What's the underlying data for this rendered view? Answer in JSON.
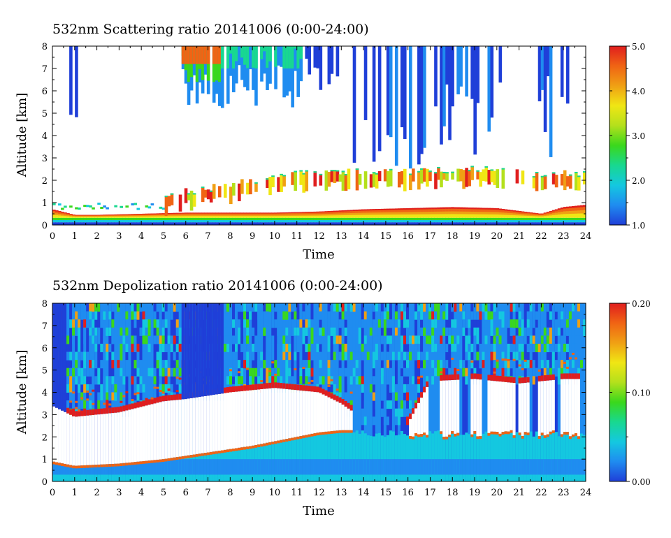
{
  "chart_data": [
    {
      "type": "heatmap",
      "title": "532nm Scattering ratio  20141006 (0:00-24:00)",
      "xlabel": "Time",
      "ylabel": "Altitude [km]",
      "xlim": [
        0,
        24
      ],
      "ylim": [
        0,
        8
      ],
      "x_ticks": [
        "0",
        "1",
        "2",
        "3",
        "4",
        "5",
        "6",
        "7",
        "8",
        "9",
        "10",
        "11",
        "12",
        "13",
        "14",
        "15",
        "16",
        "17",
        "18",
        "19",
        "20",
        "21",
        "22",
        "23",
        "24"
      ],
      "y_ticks": [
        "0",
        "1",
        "2",
        "3",
        "4",
        "5",
        "6",
        "7",
        "8"
      ],
      "colorbar": {
        "min": 1.0,
        "max": 5.0,
        "ticks": [
          "1.0",
          "2.0",
          "3.0",
          "4.0",
          "5.0"
        ]
      },
      "colormap": [
        "#1f3fd8",
        "#1f8cf0",
        "#14c8e0",
        "#18d890",
        "#3ad81c",
        "#b4e01c",
        "#f0e614",
        "#f0a014",
        "#f06414",
        "#e01e1e"
      ],
      "features": {
        "boundary_layer_top_km": [
          [
            0,
            0.7
          ],
          [
            1,
            0.45
          ],
          [
            2,
            0.45
          ],
          [
            4,
            0.5
          ],
          [
            6,
            0.55
          ],
          [
            8,
            0.55
          ],
          [
            10,
            0.55
          ],
          [
            12,
            0.6
          ],
          [
            14,
            0.7
          ],
          [
            16,
            0.75
          ],
          [
            18,
            0.8
          ],
          [
            20,
            0.75
          ],
          [
            22,
            0.5
          ],
          [
            23,
            0.8
          ],
          [
            24,
            0.9
          ]
        ],
        "aerosol_layer_top_km": [
          [
            0,
            0.9
          ],
          [
            4,
            0.9
          ],
          [
            6,
            1.5
          ],
          [
            8,
            1.8
          ],
          [
            10,
            2.2
          ],
          [
            12,
            2.4
          ],
          [
            14,
            2.4
          ],
          [
            16,
            2.4
          ],
          [
            18,
            2.5
          ],
          [
            20,
            2.5
          ],
          [
            22,
            2.3
          ],
          [
            24,
            2.3
          ]
        ]
      }
    },
    {
      "type": "heatmap",
      "title": "532nm Depolization ratio  20141006 (0:00-24:00)",
      "xlabel": "Time",
      "ylabel": "Altitude [km]",
      "xlim": [
        0,
        24
      ],
      "ylim": [
        0,
        8
      ],
      "x_ticks": [
        "0",
        "1",
        "2",
        "3",
        "4",
        "5",
        "6",
        "7",
        "8",
        "9",
        "10",
        "11",
        "12",
        "13",
        "14",
        "15",
        "16",
        "17",
        "18",
        "19",
        "20",
        "21",
        "22",
        "23",
        "24"
      ],
      "y_ticks": [
        "0",
        "1",
        "2",
        "3",
        "4",
        "5",
        "6",
        "7",
        "8"
      ],
      "colorbar": {
        "min": 0.0,
        "max": 0.2,
        "ticks": [
          "0.00",
          "0.10",
          "0.20"
        ]
      },
      "colormap": [
        "#1f3fd8",
        "#1f8cf0",
        "#14c8e0",
        "#18d890",
        "#3ad81c",
        "#b4e01c",
        "#f0e614",
        "#f0a014",
        "#f06414",
        "#e01e1e"
      ],
      "features": {
        "masked_region_top_km": [
          [
            0,
            3.4
          ],
          [
            1,
            2.9
          ],
          [
            3,
            3.1
          ],
          [
            5,
            3.6
          ],
          [
            6,
            3.7
          ],
          [
            8,
            4.0
          ],
          [
            10,
            4.2
          ],
          [
            11,
            4.1
          ],
          [
            12,
            4.0
          ],
          [
            13,
            3.5
          ],
          [
            14,
            2.8
          ],
          [
            16,
            2.6
          ],
          [
            17,
            4.5
          ],
          [
            19,
            4.6
          ],
          [
            21,
            4.4
          ],
          [
            23,
            4.6
          ],
          [
            24,
            4.6
          ]
        ],
        "masked_region_bottom_km": [
          [
            0,
            0.9
          ],
          [
            1,
            0.7
          ],
          [
            3,
            0.8
          ],
          [
            5,
            1.0
          ],
          [
            7,
            1.3
          ],
          [
            9,
            1.6
          ],
          [
            10,
            1.8
          ],
          [
            11,
            2.0
          ],
          [
            12,
            2.2
          ],
          [
            13,
            2.3
          ]
        ]
      }
    }
  ]
}
